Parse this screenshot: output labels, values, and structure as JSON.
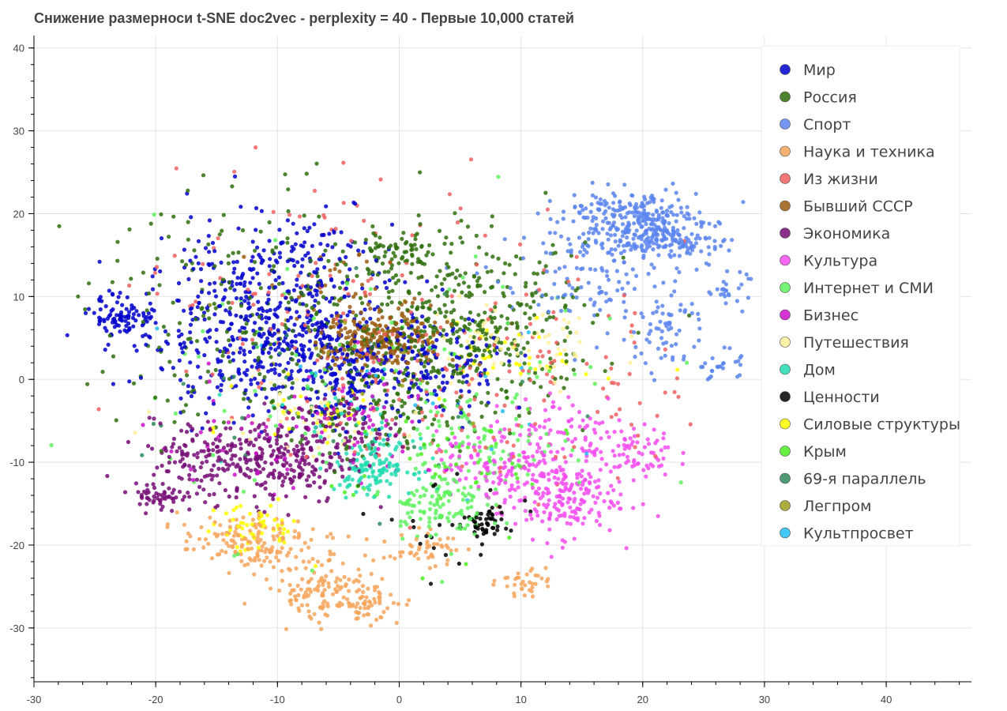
{
  "chart_data": {
    "type": "scatter",
    "title": "Снижение размерноси t-SNE doc2vec - perplexity = 40 - Первые 10,000 статей",
    "xlabel": "",
    "ylabel": "",
    "xlim": [
      -30,
      47
    ],
    "ylim": [
      -36.5,
      41.5
    ],
    "x_ticks": [
      -30,
      -20,
      -10,
      0,
      10,
      20,
      30,
      40
    ],
    "y_ticks": [
      -30,
      -20,
      -10,
      0,
      10,
      20,
      30,
      40
    ],
    "x_tick_labels": [
      "-30",
      "-20",
      "-10",
      "0",
      "10",
      "20",
      "30",
      "40"
    ],
    "y_tick_labels": [
      "-30",
      "-20",
      "-10",
      "0",
      "10",
      "20",
      "30",
      "40"
    ],
    "grid": true,
    "legend_position": "top-right",
    "series": [
      {
        "name": "Мир",
        "color": "#0000cc",
        "clusters": [
          {
            "cx": -11,
            "cy": 6,
            "sx": 5,
            "sy": 5,
            "n": 520
          },
          {
            "cx": -22.5,
            "cy": 7.5,
            "sx": 1.4,
            "sy": 1.3,
            "n": 90
          },
          {
            "cx": -4,
            "cy": 1,
            "sx": 3,
            "sy": 3,
            "n": 180
          },
          {
            "cx": 4,
            "cy": 2,
            "sx": 3,
            "sy": 3,
            "n": 100
          },
          {
            "cx": -9,
            "cy": 16,
            "sx": 4,
            "sy": 3,
            "n": 80
          }
        ]
      },
      {
        "name": "Россия",
        "color": "#2e6e0a",
        "clusters": [
          {
            "cx": 6,
            "cy": 6,
            "sx": 5,
            "sy": 5,
            "n": 380
          },
          {
            "cx": 0,
            "cy": 15,
            "sx": 2,
            "sy": 1.5,
            "n": 70
          },
          {
            "cx": -10,
            "cy": 8,
            "sx": 8,
            "sy": 7,
            "n": 260
          },
          {
            "cx": -2,
            "cy": -4,
            "sx": 4,
            "sy": 3,
            "n": 100
          }
        ]
      },
      {
        "name": "Спорт",
        "color": "#5b85ee",
        "clusters": [
          {
            "cx": 19,
            "cy": 19,
            "sx": 2.8,
            "sy": 2,
            "n": 300
          },
          {
            "cx": 23.5,
            "cy": 16.5,
            "sx": 1.5,
            "sy": 1.3,
            "n": 80
          },
          {
            "cx": 26.5,
            "cy": 1.5,
            "sx": 0.8,
            "sy": 1,
            "n": 25
          },
          {
            "cx": 27,
            "cy": 11,
            "sx": 0.8,
            "sy": 1,
            "n": 25
          },
          {
            "cx": 22,
            "cy": 6,
            "sx": 1.5,
            "sy": 2.5,
            "n": 55
          },
          {
            "cx": 16,
            "cy": 12,
            "sx": 4,
            "sy": 4,
            "n": 120
          }
        ]
      },
      {
        "name": "Наука и техника",
        "color": "#f7a55a",
        "clusters": [
          {
            "cx": -6,
            "cy": -26,
            "sx": 2.5,
            "sy": 1.5,
            "n": 110
          },
          {
            "cx": -2.5,
            "cy": -27,
            "sx": 1.2,
            "sy": 1,
            "n": 45
          },
          {
            "cx": -13,
            "cy": -19.5,
            "sx": 2.5,
            "sy": 1.5,
            "n": 110
          },
          {
            "cx": 2,
            "cy": -20.5,
            "sx": 1.5,
            "sy": 1,
            "n": 45
          },
          {
            "cx": 10,
            "cy": -24.5,
            "sx": 1,
            "sy": 0.8,
            "n": 35
          },
          {
            "cx": -8,
            "cy": -21,
            "sx": 3,
            "sy": 2,
            "n": 60
          }
        ]
      },
      {
        "name": "Из жизни",
        "color": "#f06060",
        "clusters": [
          {
            "cx": 8,
            "cy": 0,
            "sx": 8,
            "sy": 7,
            "n": 150
          },
          {
            "cx": -5,
            "cy": 10,
            "sx": 9,
            "sy": 8,
            "n": 120
          }
        ]
      },
      {
        "name": "Бывший СССР",
        "color": "#9c5a10",
        "clusters": [
          {
            "cx": -1,
            "cy": 4.5,
            "sx": 2.5,
            "sy": 2,
            "n": 180
          },
          {
            "cx": -3.5,
            "cy": 4,
            "sx": 1.2,
            "sy": 1.2,
            "n": 60
          },
          {
            "cx": -5,
            "cy": 10,
            "sx": 3,
            "sy": 3,
            "n": 40
          }
        ]
      },
      {
        "name": "Экономика",
        "color": "#750c75",
        "clusters": [
          {
            "cx": -10,
            "cy": -10,
            "sx": 3,
            "sy": 2.5,
            "n": 230
          },
          {
            "cx": -19.5,
            "cy": -14,
            "sx": 1.3,
            "sy": 1,
            "n": 50
          },
          {
            "cx": -17,
            "cy": -9,
            "sx": 2.5,
            "sy": 2,
            "n": 100
          },
          {
            "cx": -5,
            "cy": -6,
            "sx": 2.5,
            "sy": 2,
            "n": 90
          }
        ]
      },
      {
        "name": "Культура",
        "color": "#f54cf0",
        "clusters": [
          {
            "cx": 13,
            "cy": -14,
            "sx": 2.5,
            "sy": 2.5,
            "n": 210
          },
          {
            "cx": 19,
            "cy": -9,
            "sx": 1.8,
            "sy": 1.5,
            "n": 70
          },
          {
            "cx": 8,
            "cy": -10,
            "sx": 2.5,
            "sy": 2,
            "n": 100
          },
          {
            "cx": 14,
            "cy": -6,
            "sx": 3,
            "sy": 2,
            "n": 70
          }
        ]
      },
      {
        "name": "Интернет и СМИ",
        "color": "#5df25d",
        "clusters": [
          {
            "cx": 3,
            "cy": -15,
            "sx": 2,
            "sy": 2,
            "n": 110
          },
          {
            "cx": 7,
            "cy": -8,
            "sx": 3,
            "sy": 3,
            "n": 80
          },
          {
            "cx": 0,
            "cy": 0,
            "sx": 10,
            "sy": 9,
            "n": 90
          }
        ]
      },
      {
        "name": "Бизнес",
        "color": "#cc10cc",
        "clusters": [
          {
            "cx": -2,
            "cy": -6,
            "sx": 4,
            "sy": 4,
            "n": 60
          },
          {
            "cx": -14,
            "cy": -8,
            "sx": 4,
            "sy": 3,
            "n": 30
          }
        ]
      },
      {
        "name": "Путешествия",
        "color": "#fff09a",
        "clusters": [
          {
            "cx": 10,
            "cy": 4,
            "sx": 4,
            "sy": 3,
            "n": 60
          },
          {
            "cx": -8,
            "cy": -3,
            "sx": 5,
            "sy": 3,
            "n": 50
          }
        ]
      },
      {
        "name": "Дом",
        "color": "#22ddb0",
        "clusters": [
          {
            "cx": -2,
            "cy": -10.5,
            "sx": 1.6,
            "sy": 1.6,
            "n": 130
          },
          {
            "cx": -5,
            "cy": -4,
            "sx": 4,
            "sy": 3,
            "n": 30
          }
        ]
      },
      {
        "name": "Ценности",
        "color": "#000000",
        "clusters": [
          {
            "cx": 7,
            "cy": -17.5,
            "sx": 0.8,
            "sy": 1,
            "n": 45
          },
          {
            "cx": 4,
            "cy": -18,
            "sx": 3,
            "sy": 4,
            "n": 25
          }
        ]
      },
      {
        "name": "Силовые структуры",
        "color": "#ffff00",
        "clusters": [
          {
            "cx": -12,
            "cy": -18,
            "sx": 2,
            "sy": 1.5,
            "n": 55
          },
          {
            "cx": 10,
            "cy": 3,
            "sx": 3,
            "sy": 2,
            "n": 40
          },
          {
            "cx": -7,
            "cy": -4,
            "sx": 3,
            "sy": 2,
            "n": 30
          }
        ]
      },
      {
        "name": "Крым",
        "color": "#4cee20",
        "clusters": [
          {
            "cx": 4,
            "cy": -10,
            "sx": 5,
            "sy": 5,
            "n": 50
          }
        ]
      },
      {
        "name": "69-я параллель",
        "color": "#2f8a5a",
        "clusters": [
          {
            "cx": -5,
            "cy": -3,
            "sx": 8,
            "sy": 6,
            "n": 35
          }
        ]
      },
      {
        "name": "Легпром",
        "color": "#9e9e1c",
        "clusters": [
          {
            "cx": -2,
            "cy": 3,
            "sx": 6,
            "sy": 5,
            "n": 20
          }
        ]
      },
      {
        "name": "Культпросвет",
        "color": "#22bef5",
        "clusters": [
          {
            "cx": -3,
            "cy": -2,
            "sx": 8,
            "sy": 6,
            "n": 20
          }
        ]
      }
    ]
  }
}
